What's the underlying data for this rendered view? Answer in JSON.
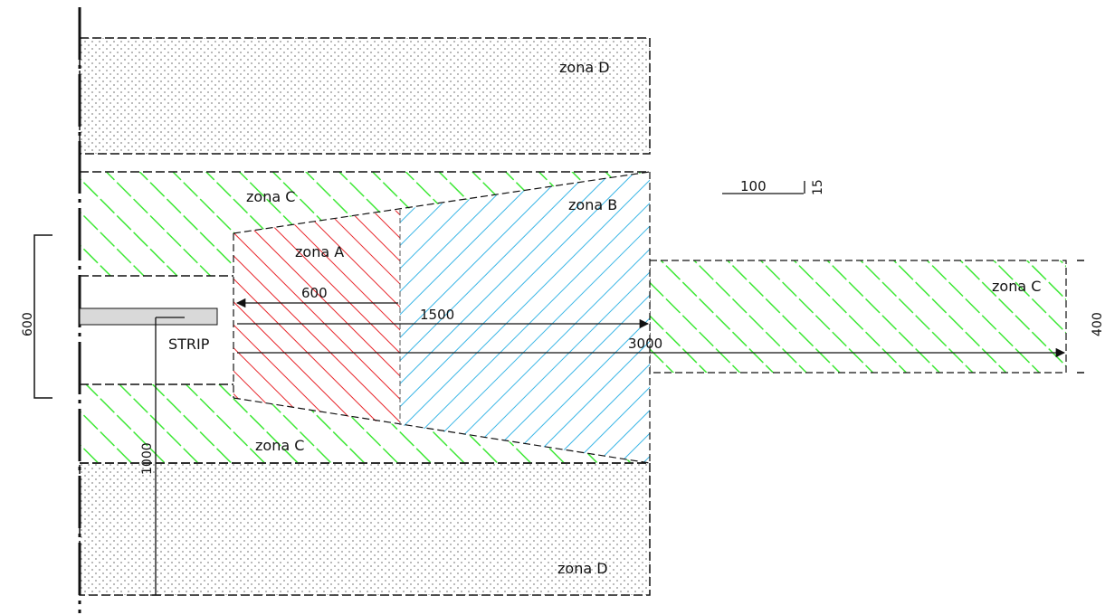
{
  "labels": {
    "zone_d_top": "zona D",
    "zone_d_bottom": "zona D",
    "zone_c_top": "zona C",
    "zone_c_bottom": "zona C",
    "zone_c_right": "zona C",
    "zone_b": "zona B",
    "zone_a": "zona A",
    "strip": "STRIP"
  },
  "dimensions": {
    "d600_h": "600",
    "d1500": "1500",
    "d3000": "3000",
    "d600_v": "600",
    "d400_v": "400",
    "d1000_v": "1000"
  },
  "scale": {
    "unit": "100",
    "small": "15"
  },
  "colors": {
    "zone_a": "#e8262b",
    "zone_b": "#3bb6e6",
    "zone_c": "#3ee836",
    "zone_d_dots": "#8a8a8a",
    "strip_fill": "#d9d9d9",
    "line": "#111111"
  }
}
